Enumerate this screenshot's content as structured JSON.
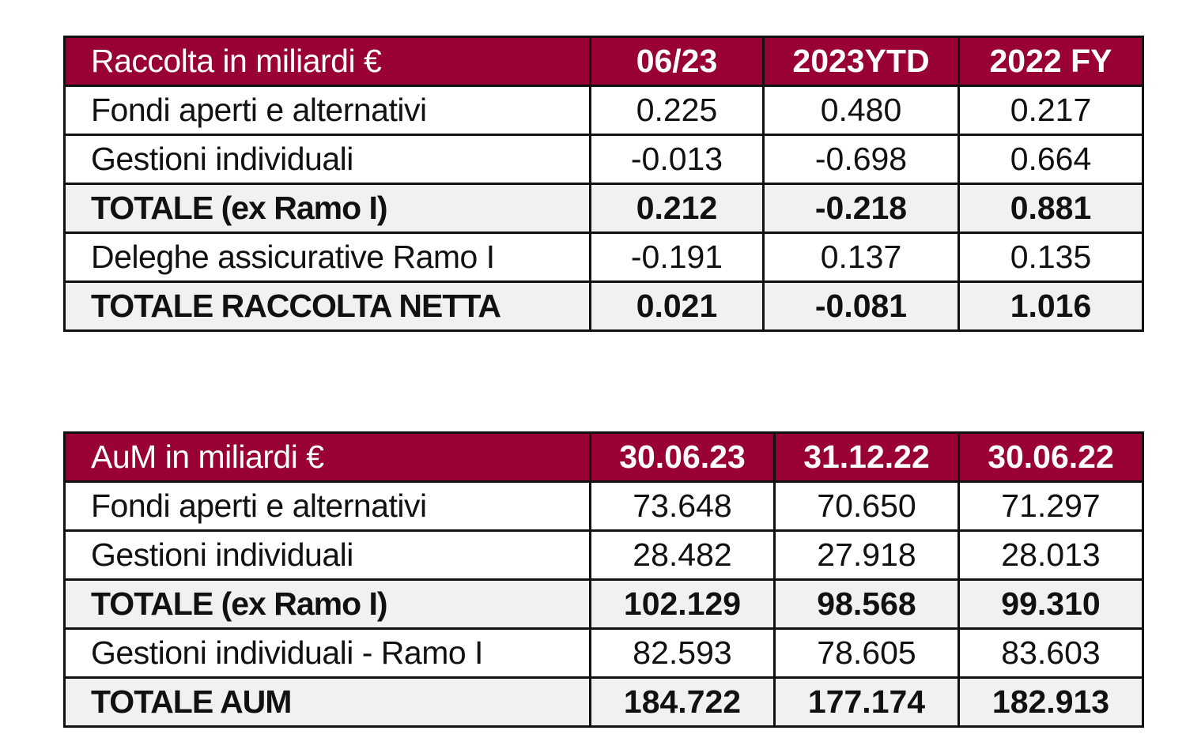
{
  "tables": [
    {
      "header": [
        "Raccolta in miliardi €",
        "06/23",
        "2023YTD",
        "2022 FY"
      ],
      "rows": [
        {
          "label": "Fondi aperti e alternativi",
          "values": [
            "0.225",
            "0.480",
            "0.217"
          ],
          "bold": false
        },
        {
          "label": "Gestioni individuali",
          "values": [
            "-0.013",
            "-0.698",
            "0.664"
          ],
          "bold": false
        },
        {
          "label": "TOTALE (ex Ramo I)",
          "values": [
            "0.212",
            "-0.218",
            "0.881"
          ],
          "bold": true
        },
        {
          "label": "Deleghe assicurative Ramo I",
          "values": [
            "-0.191",
            "0.137",
            "0.135"
          ],
          "bold": false
        },
        {
          "label": "TOTALE RACCOLTA NETTA",
          "values": [
            "0.021",
            "-0.081",
            "1.016"
          ],
          "bold": true
        }
      ]
    },
    {
      "header": [
        "AuM in miliardi €",
        "30.06.23",
        "31.12.22",
        "30.06.22"
      ],
      "rows": [
        {
          "label": "Fondi aperti e alternativi",
          "values": [
            "73.648",
            "70.650",
            "71.297"
          ],
          "bold": false
        },
        {
          "label": "Gestioni individuali",
          "values": [
            "28.482",
            "27.918",
            "28.013"
          ],
          "bold": false
        },
        {
          "label": "TOTALE (ex Ramo I)",
          "values": [
            "102.129",
            "98.568",
            "99.310"
          ],
          "bold": true
        },
        {
          "label": "Gestioni individuali - Ramo I",
          "values": [
            "82.593",
            "78.605",
            "83.603"
          ],
          "bold": false
        },
        {
          "label": "TOTALE AUM",
          "values": [
            "184.722",
            "177.174",
            "182.913"
          ],
          "bold": true
        }
      ]
    }
  ],
  "colors": {
    "header_background": "#990033",
    "header_text": "#ffffff",
    "total_row_background": "#f1f1f1",
    "border": "#111111"
  }
}
